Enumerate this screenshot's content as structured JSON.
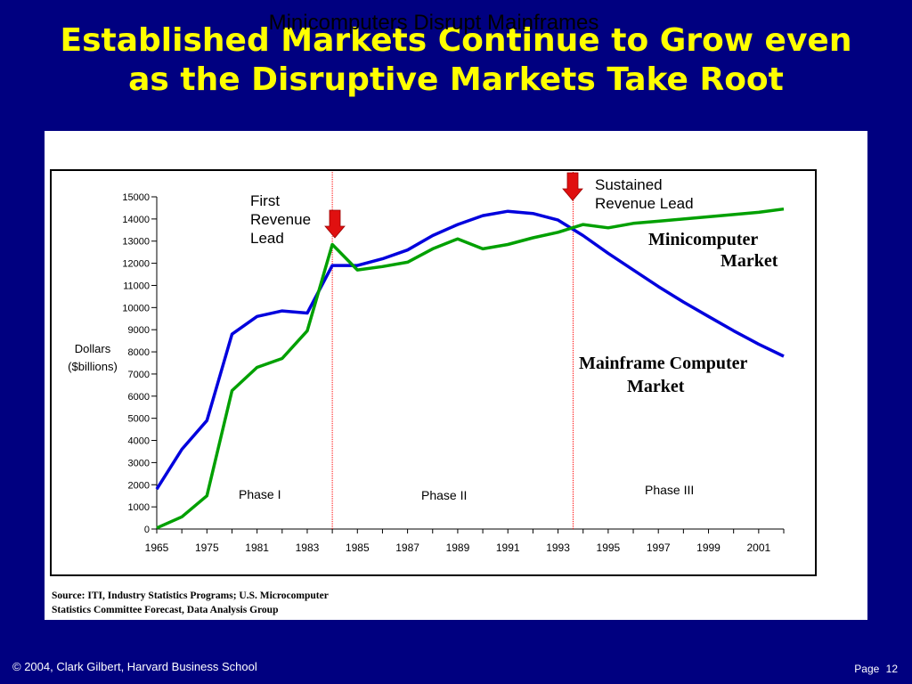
{
  "slide": {
    "title_line1": "Established Markets Continue to Grow even",
    "title_line2": "as the Disruptive Markets Take Root"
  },
  "footer": {
    "copyright": "© 2004, Clark Gilbert, Harvard Business School",
    "page_label": "Page",
    "page_number": "12"
  },
  "source": {
    "line1": "Source: ITI, Industry Statistics Programs; U.S. Microcomputer",
    "line2": "Statistics Committee Forecast, Data Analysis Group"
  },
  "colors": {
    "background": "#000080",
    "title": "#FFFF00",
    "mainframe_line": "#0000DD",
    "minicomputer_line": "#00A000",
    "arrow": "#E01010",
    "divider": "#FF0000"
  },
  "chart_data": {
    "type": "line",
    "title": "Minicomputers Disrupt Mainframes",
    "ylabel_line1": "Dollars",
    "ylabel_line2": "($billions)",
    "ylim": [
      0,
      15000
    ],
    "yticks": [
      0,
      1000,
      2000,
      3000,
      4000,
      5000,
      6000,
      7000,
      8000,
      9000,
      10000,
      11000,
      12000,
      13000,
      14000,
      15000
    ],
    "x_tick_labels": [
      "1965",
      "1975",
      "1981",
      "1983",
      "1985",
      "1987",
      "1989",
      "1991",
      "1993",
      "1995",
      "1997",
      "1999",
      "2001"
    ],
    "x_point_count": 26,
    "grid": false,
    "series": [
      {
        "key": "mainframe",
        "name": "Mainframe Computer Market",
        "name_line1": "Mainframe Computer",
        "name_line2": "Market",
        "color": "#0000DD",
        "values": [
          1800,
          3600,
          4900,
          8800,
          9600,
          9850,
          9750,
          11900,
          11900,
          12200,
          12600,
          13250,
          13750,
          14150,
          14350,
          14250,
          13950,
          13250,
          12450,
          11700,
          10950,
          10250,
          9600,
          8950,
          8350,
          7800
        ]
      },
      {
        "key": "minicomputer",
        "name": "Minicomputer Market",
        "name_line1": "Minicomputer",
        "name_line2": "Market",
        "color": "#00A000",
        "values": [
          50,
          550,
          1500,
          6250,
          7300,
          7700,
          8950,
          12850,
          11700,
          11850,
          12050,
          12650,
          13100,
          12650,
          12850,
          13150,
          13400,
          13750,
          13600,
          13800,
          13900,
          14000,
          14100,
          14200,
          14300,
          14450
        ]
      }
    ],
    "annotations": {
      "first_revenue_lead": [
        "First",
        "Revenue",
        "Lead"
      ],
      "sustained_revenue_lead": [
        "Sustained",
        "Revenue Lead"
      ],
      "phase1": "Phase I",
      "phase2": "Phase II",
      "phase3": "Phase III"
    },
    "divider_positions_index": [
      7.0,
      16.6
    ]
  }
}
